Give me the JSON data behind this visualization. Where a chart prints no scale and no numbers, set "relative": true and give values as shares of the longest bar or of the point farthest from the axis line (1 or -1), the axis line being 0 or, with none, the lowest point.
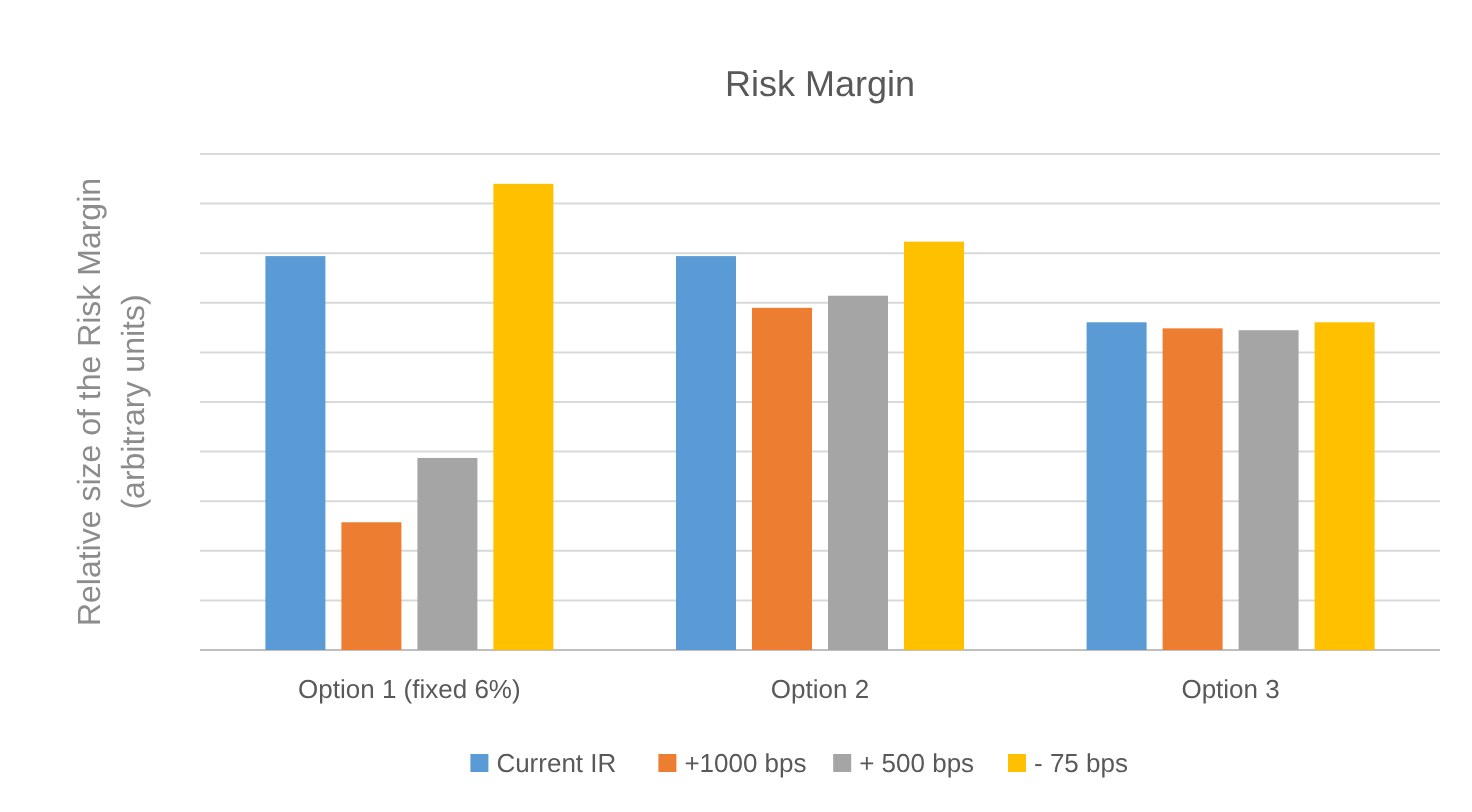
{
  "chart_data": {
    "type": "bar",
    "title": "Risk Margin",
    "ylabel": "Relative size of the Risk Margin\n(arbitrary units)",
    "relative": true,
    "grid": "y",
    "legend": "bottom",
    "categories": [
      "Option 1 (fixed 6%)",
      "Option 2",
      "Option 3"
    ],
    "series": [
      {
        "name": "Current IR",
        "color": "#5b9bd5",
        "values": [
          0.845,
          0.845,
          0.703
        ]
      },
      {
        "name": "+1000 bps",
        "color": "#ed7d31",
        "values": [
          0.274,
          0.734,
          0.69
        ]
      },
      {
        "name": "+ 500 bps",
        "color": "#a5a5a5",
        "values": [
          0.412,
          0.76,
          0.686
        ]
      },
      {
        "name": "- 75 bps",
        "color": "#ffc000",
        "values": [
          1,
          0.876,
          0.703
        ]
      }
    ]
  }
}
